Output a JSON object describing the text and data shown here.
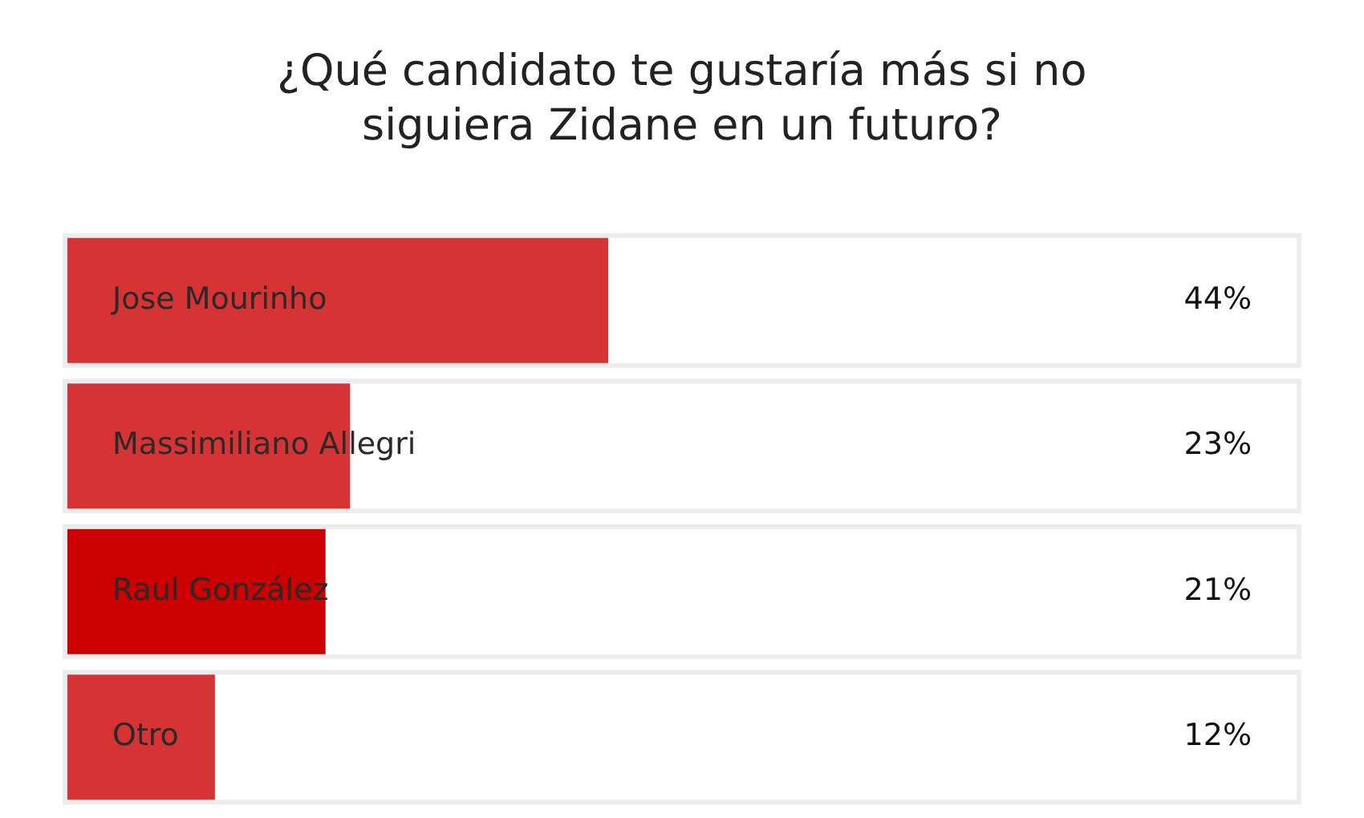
{
  "chart_data": {
    "type": "bar",
    "orientation": "horizontal",
    "title": "¿Qué candidato te gustaría más si no siguiera Zidane en un futuro?",
    "categories": [
      "Jose Mourinho",
      "Massimiliano Allegri",
      "Raul González",
      "Otro"
    ],
    "values": [
      44,
      23,
      21,
      12
    ],
    "colors": [
      "#d63334",
      "#d63334",
      "#cc0000",
      "#d63334"
    ],
    "value_labels": [
      "44%",
      "23%",
      "21%",
      "12%"
    ],
    "xlim": [
      0,
      100
    ],
    "tick_labels": false,
    "legend": false
  }
}
